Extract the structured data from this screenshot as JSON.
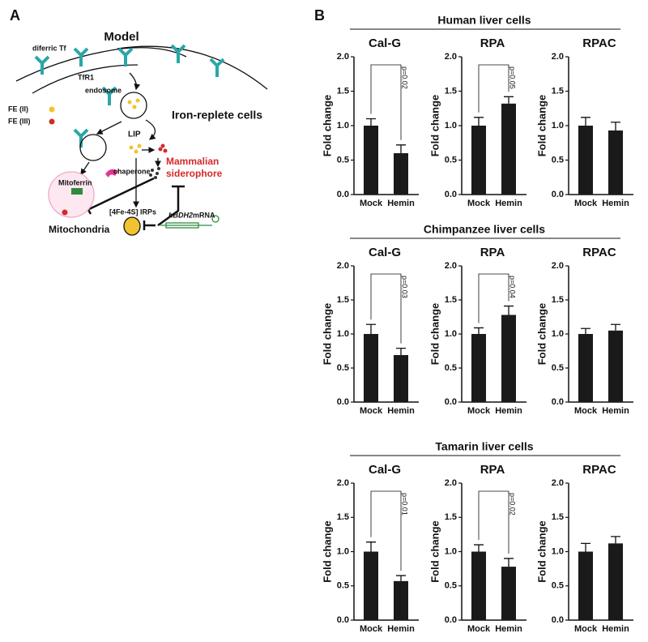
{
  "panel_labels": [
    "A",
    "B"
  ],
  "diagram": {
    "title": "Model",
    "diferric_tf": "diferric Tf",
    "tfr1": "TfR1",
    "endosome": "endosome",
    "cell_state": "Iron-replete cells",
    "fe2": "FE (II)",
    "fe3": "FE (III)",
    "lip": "LIP",
    "chaperone": "chaperone",
    "siderophore_1": "Mammalian",
    "siderophore_2": "siderophore",
    "mitoferrin": "Mitoferrin",
    "mitochondria": "Mitochondria",
    "irps": "[4Fe-4S] IRPs",
    "gene": "hBDH2",
    "mrna": "mRNA"
  },
  "group_titles": [
    "Human liver cells",
    "Chimpanzee liver cells",
    "Tamarin liver cells"
  ],
  "chart_data": [
    {
      "type": "bar",
      "title": "Cal-G",
      "y_label": "Fold change",
      "categories": [
        "Mock",
        "Hemin"
      ],
      "values": [
        1.0,
        0.6
      ],
      "errors": [
        0.1,
        0.12
      ],
      "color": "#1a1a1a",
      "annotation": "p=0.02",
      "ylim": [
        0,
        2
      ],
      "yticks": [
        {
          "value": 0,
          "label": "0.0"
        },
        {
          "value": 0.5,
          "label": "0.5"
        },
        {
          "value": 1,
          "label": "1.0"
        },
        {
          "value": 1.5,
          "label": "1.5"
        },
        {
          "value": 2,
          "label": "2.0"
        }
      ]
    },
    {
      "type": "bar",
      "title": "RPA",
      "y_label": "Fold change",
      "categories": [
        "Mock",
        "Hemin"
      ],
      "values": [
        1.0,
        1.32
      ],
      "errors": [
        0.12,
        0.1
      ],
      "color": "#1a1a1a",
      "annotation": "p=0.05",
      "ylim": [
        0,
        2
      ],
      "yticks": [
        {
          "value": 0,
          "label": "0.0"
        },
        {
          "value": 0.5,
          "label": "0.5"
        },
        {
          "value": 1,
          "label": "1.0"
        },
        {
          "value": 1.5,
          "label": "1.5"
        },
        {
          "value": 2,
          "label": "2.0"
        }
      ]
    },
    {
      "type": "bar",
      "title": "RPAC",
      "y_label": "Fold change",
      "categories": [
        "Mock",
        "Hemin"
      ],
      "values": [
        1.0,
        0.93
      ],
      "errors": [
        0.12,
        0.12
      ],
      "color": "#1a1a1a",
      "ylim": [
        0,
        2
      ],
      "yticks": [
        {
          "value": 0,
          "label": "0.0"
        },
        {
          "value": 0.5,
          "label": "0.5"
        },
        {
          "value": 1,
          "label": "1.0"
        },
        {
          "value": 1.5,
          "label": "1.5"
        },
        {
          "value": 2,
          "label": "2.0"
        }
      ]
    },
    {
      "type": "bar",
      "title": "Cal-G",
      "y_label": "Fold change",
      "categories": [
        "Mock",
        "Hemin"
      ],
      "values": [
        1.0,
        0.69
      ],
      "errors": [
        0.14,
        0.1
      ],
      "color": "#1a1a1a",
      "annotation": "p=0.03",
      "ylim": [
        0,
        2
      ],
      "yticks": [
        {
          "value": 0,
          "label": "0.0"
        },
        {
          "value": 0.5,
          "label": "0.5"
        },
        {
          "value": 1,
          "label": "1.0"
        },
        {
          "value": 1.5,
          "label": "1.5"
        },
        {
          "value": 2,
          "label": "2.0"
        }
      ]
    },
    {
      "type": "bar",
      "title": "RPA",
      "y_label": "Fold change",
      "categories": [
        "Mock",
        "Hemin"
      ],
      "values": [
        1.0,
        1.28
      ],
      "errors": [
        0.09,
        0.13
      ],
      "color": "#1a1a1a",
      "annotation": "p=0.04",
      "ylim": [
        0,
        2
      ],
      "yticks": [
        {
          "value": 0,
          "label": "0.0"
        },
        {
          "value": 0.5,
          "label": "0.5"
        },
        {
          "value": 1,
          "label": "1.0"
        },
        {
          "value": 1.5,
          "label": "1.5"
        },
        {
          "value": 2,
          "label": "2.0"
        }
      ]
    },
    {
      "type": "bar",
      "title": "RPAC",
      "y_label": "Fold change",
      "categories": [
        "Mock",
        "Hemin"
      ],
      "values": [
        1.0,
        1.05
      ],
      "errors": [
        0.08,
        0.09
      ],
      "color": "#1a1a1a",
      "ylim": [
        0,
        2
      ],
      "yticks": [
        {
          "value": 0,
          "label": "0.0"
        },
        {
          "value": 0.5,
          "label": "0.5"
        },
        {
          "value": 1,
          "label": "1.0"
        },
        {
          "value": 1.5,
          "label": "1.5"
        },
        {
          "value": 2,
          "label": "2.0"
        }
      ]
    },
    {
      "type": "bar",
      "title": "Cal-G",
      "y_label": "Fold change",
      "categories": [
        "Mock",
        "Hemin"
      ],
      "values": [
        1.0,
        0.57
      ],
      "errors": [
        0.14,
        0.08
      ],
      "color": "#1a1a1a",
      "annotation": "p=0.01",
      "ylim": [
        0,
        2
      ],
      "yticks": [
        {
          "value": 0,
          "label": "0.0"
        },
        {
          "value": 0.5,
          "label": "0.5"
        },
        {
          "value": 1,
          "label": "1.0"
        },
        {
          "value": 1.5,
          "label": "1.5"
        },
        {
          "value": 2,
          "label": "2.0"
        }
      ]
    },
    {
      "type": "bar",
      "title": "RPA",
      "y_label": "Fold change",
      "categories": [
        "Mock",
        "Hemin"
      ],
      "values": [
        1.0,
        0.78
      ],
      "errors": [
        0.1,
        0.12
      ],
      "color": "#1a1a1a",
      "annotation": "p=0.02",
      "ylim": [
        0,
        2
      ],
      "yticks": [
        {
          "value": 0,
          "label": "0.0"
        },
        {
          "value": 0.5,
          "label": "0.5"
        },
        {
          "value": 1,
          "label": "1.0"
        },
        {
          "value": 1.5,
          "label": "1.5"
        },
        {
          "value": 2,
          "label": "2.0"
        }
      ]
    },
    {
      "type": "bar",
      "title": "RPAC",
      "y_label": "Fold change",
      "categories": [
        "Mock",
        "Hemin"
      ],
      "values": [
        1.0,
        1.12
      ],
      "errors": [
        0.12,
        0.1
      ],
      "color": "#1a1a1a",
      "ylim": [
        0,
        2
      ],
      "yticks": [
        {
          "value": 0,
          "label": "0.0"
        },
        {
          "value": 0.5,
          "label": "0.5"
        },
        {
          "value": 1,
          "label": "1.0"
        },
        {
          "value": 1.5,
          "label": "1.5"
        },
        {
          "value": 2,
          "label": "2.0"
        }
      ]
    }
  ]
}
